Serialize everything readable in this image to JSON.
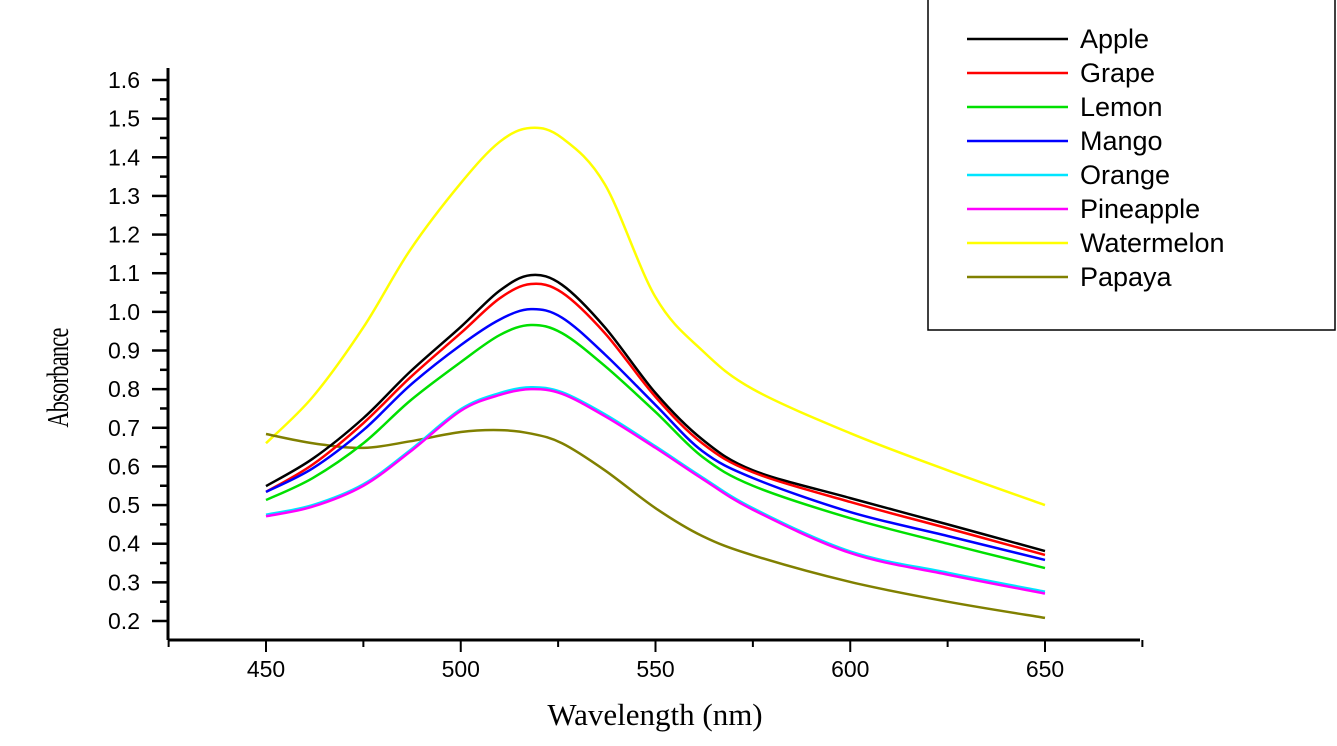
{
  "chart_data": {
    "type": "line",
    "title": "",
    "xlabel": "Wavelength (nm)",
    "ylabel": "Absorbance",
    "xlim": [
      425,
      675
    ],
    "ylim": [
      0.15,
      1.6
    ],
    "xticks": [
      450,
      500,
      550,
      600,
      650
    ],
    "yticks": [
      "0.2",
      "0.3",
      "0.4",
      "0.5",
      "0.6",
      "0.7",
      "0.8",
      "0.9",
      "1.0",
      "1.1",
      "1.2",
      "1.3",
      "1.4",
      "1.5",
      "1.6"
    ],
    "grid": false,
    "legend_position": "top-right",
    "x": [
      450,
      462,
      475,
      487,
      500,
      510,
      518,
      526,
      537,
      550,
      562,
      575,
      600,
      625,
      650
    ],
    "series": [
      {
        "name": "Apple",
        "color": "#000000",
        "values": [
          0.549,
          0.62,
          0.725,
          0.845,
          0.961,
          1.055,
          1.095,
          1.07,
          0.96,
          0.79,
          0.67,
          0.59,
          0.518,
          0.45,
          0.381
        ]
      },
      {
        "name": "Grape",
        "color": "#ff0000",
        "values": [
          0.534,
          0.605,
          0.712,
          0.83,
          0.945,
          1.035,
          1.072,
          1.05,
          0.945,
          0.78,
          0.66,
          0.585,
          0.508,
          0.44,
          0.371
        ]
      },
      {
        "name": "Lemon",
        "color": "#00e000",
        "values": [
          0.513,
          0.57,
          0.66,
          0.77,
          0.87,
          0.94,
          0.966,
          0.945,
          0.86,
          0.741,
          0.625,
          0.55,
          0.466,
          0.4,
          0.337
        ]
      },
      {
        "name": "Mango",
        "color": "#0000ff",
        "values": [
          0.534,
          0.595,
          0.694,
          0.81,
          0.914,
          0.98,
          1.007,
          0.985,
          0.89,
          0.759,
          0.64,
          0.57,
          0.482,
          0.42,
          0.358
        ]
      },
      {
        "name": "Orange",
        "color": "#00e5ff",
        "values": [
          0.475,
          0.5,
          0.554,
          0.642,
          0.748,
          0.79,
          0.805,
          0.792,
          0.735,
          0.652,
          0.572,
          0.492,
          0.38,
          0.325,
          0.276
        ]
      },
      {
        "name": "Pineapple",
        "color": "#ff00ff",
        "values": [
          0.471,
          0.496,
          0.55,
          0.638,
          0.744,
          0.785,
          0.8,
          0.788,
          0.73,
          0.648,
          0.568,
          0.488,
          0.376,
          0.32,
          0.271
        ]
      },
      {
        "name": "Watermelon",
        "color": "#ffff00",
        "values": [
          0.66,
          0.78,
          0.96,
          1.16,
          1.333,
          1.44,
          1.476,
          1.45,
          1.33,
          1.038,
          0.9,
          0.8,
          0.686,
          0.59,
          0.5
        ]
      },
      {
        "name": "Papaya",
        "color": "#808000",
        "values": [
          0.684,
          0.66,
          0.648,
          0.665,
          0.689,
          0.694,
          0.685,
          0.66,
          0.59,
          0.492,
          0.42,
          0.37,
          0.301,
          0.25,
          0.208
        ]
      }
    ]
  }
}
